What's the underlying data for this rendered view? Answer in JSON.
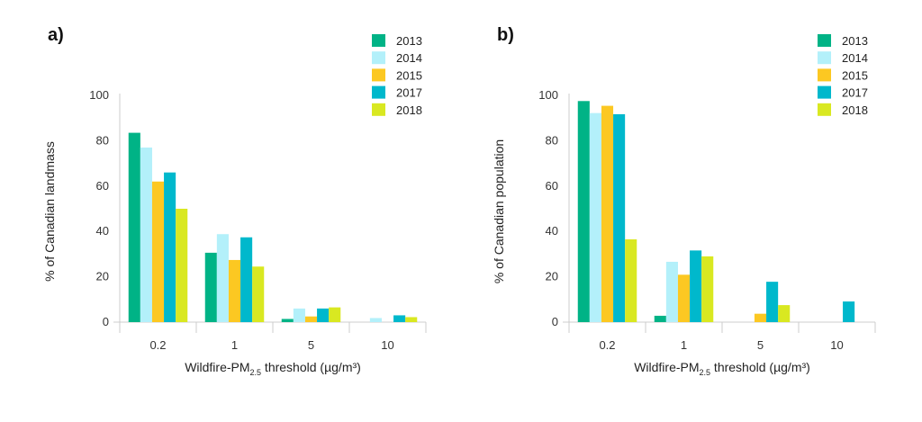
{
  "colors": {
    "2013": "#00b386",
    "2014": "#b3f0fa",
    "2015": "#fcc822",
    "2017": "#00b8cc",
    "2018": "#d9e821"
  },
  "chart_data": [
    {
      "type": "bar",
      "panel": "a)",
      "categories": [
        "0.2",
        "1",
        "5",
        "10"
      ],
      "xlabel_main": "Wildfire-PM",
      "xlabel_sub": "2.5",
      "xlabel_rest": " threshold (µg/m³)",
      "ylabel": "% of Canadian landmass",
      "ylim": [
        0,
        100
      ],
      "yticks": [
        0,
        20,
        40,
        60,
        80,
        100
      ],
      "legend_placement": "top-right",
      "series": [
        {
          "name": "2013",
          "values": [
            83.5,
            30.6,
            1.4,
            0
          ]
        },
        {
          "name": "2014",
          "values": [
            77,
            38.8,
            6,
            1.8
          ]
        },
        {
          "name": "2015",
          "values": [
            62,
            27.4,
            2.5,
            0
          ]
        },
        {
          "name": "2017",
          "values": [
            66,
            37.4,
            6,
            3
          ]
        },
        {
          "name": "2018",
          "values": [
            50,
            24.5,
            6.5,
            2.2
          ]
        }
      ]
    },
    {
      "type": "bar",
      "panel": "b)",
      "categories": [
        "0.2",
        "1",
        "5",
        "10"
      ],
      "xlabel_main": "Wildfire-PM",
      "xlabel_sub": "2.5",
      "xlabel_rest": " threshold (µg/m³)",
      "ylabel": "% of Canadian population",
      "ylim": [
        0,
        100
      ],
      "yticks": [
        0,
        20,
        40,
        60,
        80,
        100
      ],
      "legend_placement": "top-right",
      "series": [
        {
          "name": "2013",
          "values": [
            97.5,
            2.8,
            0,
            0
          ]
        },
        {
          "name": "2014",
          "values": [
            92.2,
            26.6,
            0,
            0
          ]
        },
        {
          "name": "2015",
          "values": [
            95.4,
            20.9,
            3.7,
            0
          ]
        },
        {
          "name": "2017",
          "values": [
            91.7,
            31.6,
            17.8,
            9.1
          ]
        },
        {
          "name": "2018",
          "values": [
            36.5,
            29,
            7.5,
            0
          ]
        }
      ]
    }
  ]
}
